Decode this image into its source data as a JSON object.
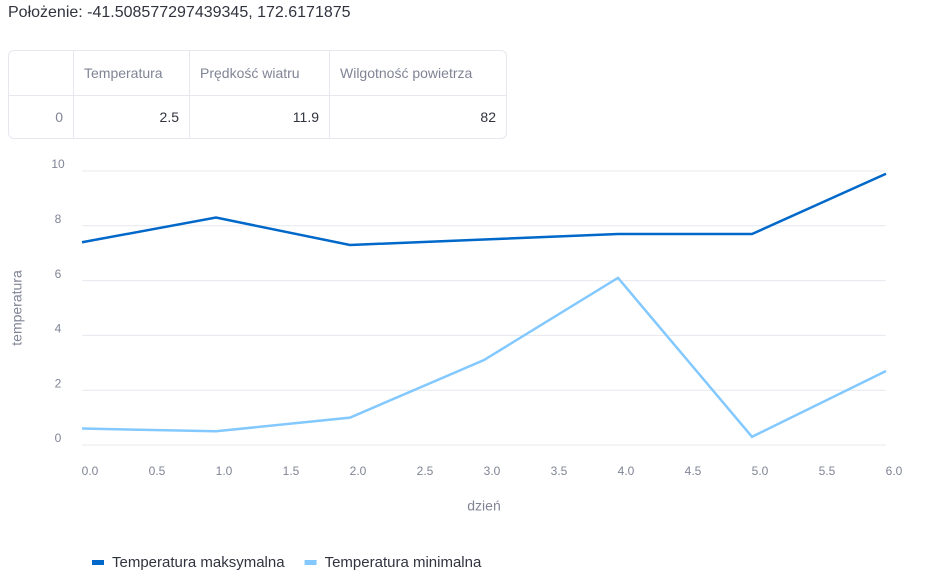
{
  "header": {
    "location": "Położenie: -41.508577297439345, 172.6171875"
  },
  "table": {
    "columns": [
      "",
      "Temperatura",
      "Prędkość wiatru",
      "Wilgotność powietrza"
    ],
    "rows": [
      [
        0,
        2.5,
        11.9,
        82
      ]
    ]
  },
  "chart_data": {
    "type": "line",
    "xlabel": "dzień",
    "ylabel": "temperatura",
    "x": [
      0,
      1,
      2,
      3,
      4,
      5,
      6
    ],
    "series": [
      {
        "name": "Temperatura maksymalna",
        "color": "#0068c9",
        "values": [
          7.4,
          8.3,
          7.3,
          7.5,
          7.7,
          7.7,
          9.9
        ]
      },
      {
        "name": "Temperatura minimalna",
        "color": "#83c9ff",
        "values": [
          0.6,
          0.5,
          1.0,
          3.1,
          6.1,
          0.3,
          2.7
        ]
      }
    ],
    "xlim": [
      0,
      6
    ],
    "xticks": [
      {
        "value": 0,
        "label": "0.0"
      },
      {
        "value": 0.5,
        "label": "0.5"
      },
      {
        "value": 1,
        "label": "1.0"
      },
      {
        "value": 1.5,
        "label": "1.5"
      },
      {
        "value": 2,
        "label": "2.0"
      },
      {
        "value": 2.5,
        "label": "2.5"
      },
      {
        "value": 3,
        "label": "3.0"
      },
      {
        "value": 3.5,
        "label": "3.5"
      },
      {
        "value": 4,
        "label": "4.0"
      },
      {
        "value": 4.5,
        "label": "4.5"
      },
      {
        "value": 5,
        "label": "5.0"
      },
      {
        "value": 5.5,
        "label": "5.5"
      },
      {
        "value": 6,
        "label": "6.0"
      }
    ],
    "ylim": [
      0,
      10
    ],
    "yticks": [
      0,
      2,
      4,
      6,
      8,
      10
    ],
    "grid": true,
    "legend": "bottom"
  }
}
